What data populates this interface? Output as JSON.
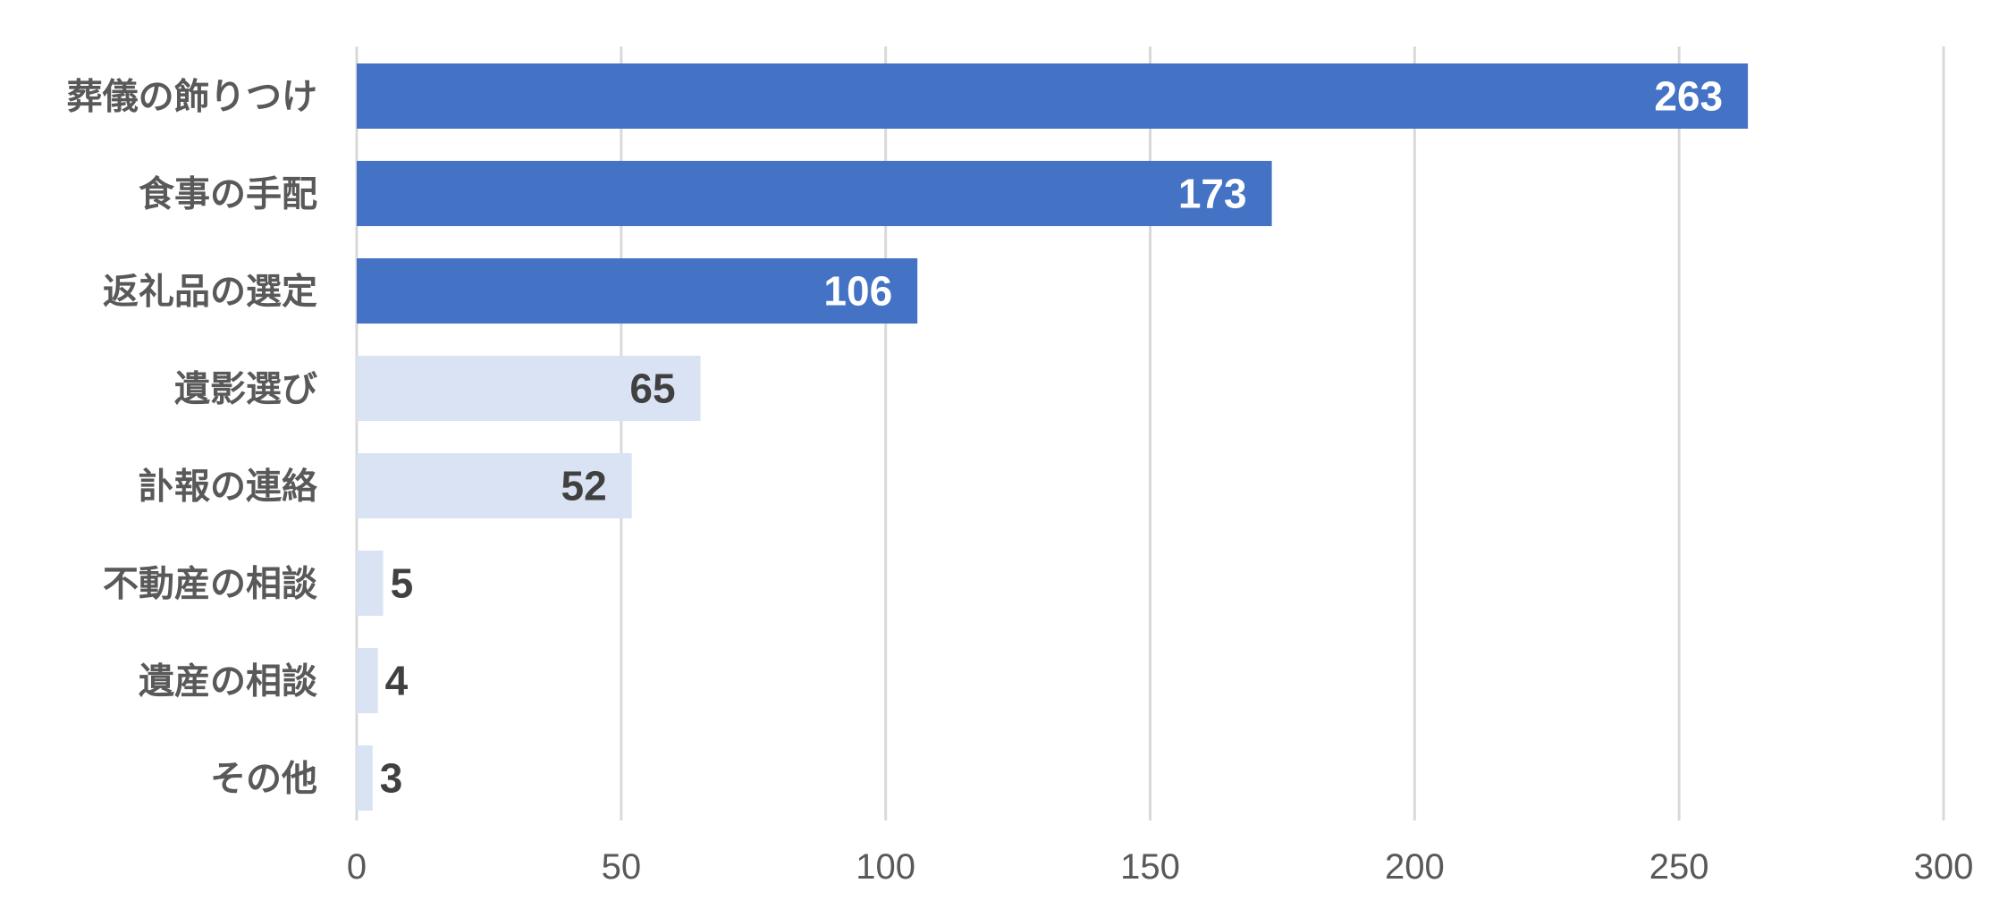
{
  "chart_data": {
    "type": "bar",
    "orientation": "horizontal",
    "categories": [
      "葬儀の飾りつけ",
      "食事の手配",
      "返礼品の選定",
      "遺影選び",
      "訃報の連絡",
      "不動産の相談",
      "遺産の相談",
      "その他"
    ],
    "values": [
      263,
      173,
      106,
      65,
      52,
      5,
      4,
      3
    ],
    "highlight": [
      true,
      true,
      true,
      false,
      false,
      false,
      false,
      false
    ],
    "xlim": [
      0,
      300
    ],
    "xticks": [
      0,
      50,
      100,
      150,
      200,
      250,
      300
    ],
    "grid": "vertical",
    "legend": "none",
    "colors": {
      "highlight_bar": "#4472c4",
      "muted_bar": "#dae3f3",
      "highlight_label": "#ffffff",
      "muted_label": "#404040"
    }
  }
}
